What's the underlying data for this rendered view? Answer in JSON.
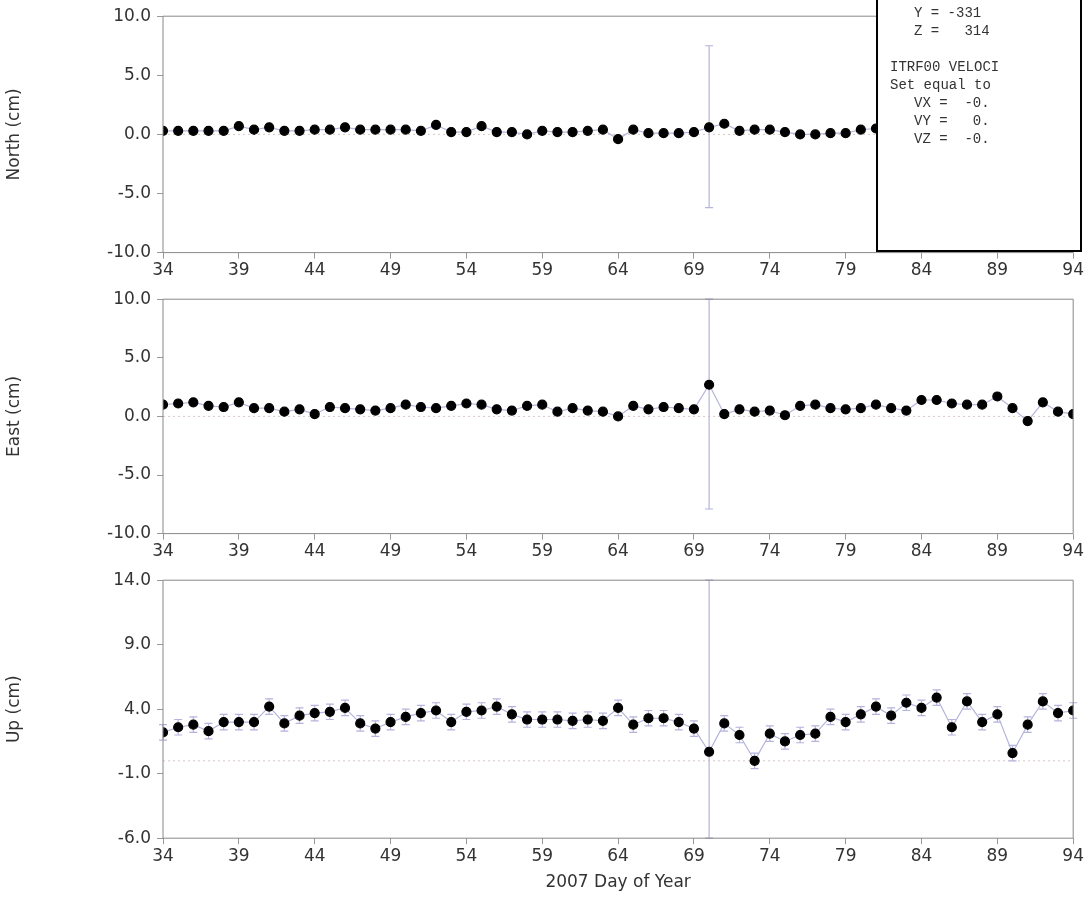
{
  "chart_data": [
    {
      "type": "line",
      "ylabel": "North (cm)",
      "marker": "circle",
      "xlim": [
        34,
        94
      ],
      "xticks": [
        34,
        39,
        44,
        49,
        54,
        59,
        64,
        69,
        74,
        79,
        84,
        89,
        94
      ],
      "ylim": [
        -10,
        10
      ],
      "yticks": [
        {
          "value": -10,
          "label": "-10.0"
        },
        {
          "value": -5,
          "label": "-5.0"
        },
        {
          "value": 0,
          "label": "0.0"
        },
        {
          "value": 5,
          "label": "5.0"
        },
        {
          "value": 10,
          "label": "10.0"
        }
      ],
      "ref_lines": [
        {
          "axis": "y",
          "value": 0,
          "line_style": "dotted",
          "color": "#d8c8c8"
        }
      ],
      "annotations": [
        "Y = -331",
        "Z =   314",
        "ITRF00 VELOCI",
        "Set equal to",
        "VX =  -0.",
        "VY =   0.",
        "VZ =  -0."
      ],
      "series": [
        {
          "color": "#000000",
          "x": [
            34,
            35,
            36,
            37,
            38,
            39,
            40,
            41,
            42,
            43,
            44,
            45,
            46,
            47,
            48,
            49,
            50,
            51,
            52,
            53,
            54,
            55,
            56,
            57,
            58,
            59,
            60,
            61,
            62,
            63,
            64,
            65,
            66,
            67,
            68,
            69,
            70,
            71,
            72,
            73,
            74,
            75,
            76,
            77,
            78,
            79,
            80,
            81
          ],
          "values": [
            0.3,
            0.3,
            0.3,
            0.3,
            0.3,
            0.7,
            0.4,
            0.6,
            0.3,
            0.3,
            0.4,
            0.4,
            0.6,
            0.4,
            0.4,
            0.4,
            0.4,
            0.3,
            0.8,
            0.2,
            0.2,
            0.7,
            0.2,
            0.2,
            0.0,
            0.3,
            0.2,
            0.2,
            0.3,
            0.4,
            -0.4,
            0.4,
            0.1,
            0.1,
            0.1,
            0.2,
            0.6,
            0.9,
            0.3,
            0.4,
            0.4,
            0.2,
            0.0,
            0.0,
            0.1,
            0.1,
            0.4,
            0.5
          ],
          "errors": [
            null,
            null,
            null,
            null,
            null,
            null,
            null,
            null,
            null,
            null,
            null,
            null,
            null,
            null,
            null,
            null,
            null,
            null,
            null,
            null,
            null,
            null,
            null,
            null,
            null,
            null,
            null,
            null,
            null,
            null,
            null,
            null,
            null,
            null,
            null,
            null,
            [
              -6.2,
              7.5
            ],
            null,
            null,
            null,
            null,
            null,
            null,
            null,
            null,
            null,
            null,
            null
          ]
        }
      ]
    },
    {
      "type": "line",
      "ylabel": "East (cm)",
      "marker": "circle",
      "xlim": [
        34,
        94
      ],
      "xticks": [
        34,
        39,
        44,
        49,
        54,
        59,
        64,
        69,
        74,
        79,
        84,
        89,
        94
      ],
      "ylim": [
        -10,
        10
      ],
      "yticks": [
        {
          "value": -10,
          "label": "-10.0"
        },
        {
          "value": -5,
          "label": "-5.0"
        },
        {
          "value": 0,
          "label": "0.0"
        },
        {
          "value": 5,
          "label": "5.0"
        },
        {
          "value": 10,
          "label": "10.0"
        }
      ],
      "ref_lines": [
        {
          "axis": "y",
          "value": 0,
          "line_style": "dotted",
          "color": "#d8c8c8"
        }
      ],
      "series": [
        {
          "color": "#000000",
          "x": [
            34,
            35,
            36,
            37,
            38,
            39,
            40,
            41,
            42,
            43,
            44,
            45,
            46,
            47,
            48,
            49,
            50,
            51,
            52,
            53,
            54,
            55,
            56,
            57,
            58,
            59,
            60,
            61,
            62,
            63,
            64,
            65,
            66,
            67,
            68,
            69,
            70,
            71,
            72,
            73,
            74,
            75,
            76,
            77,
            78,
            79,
            80,
            81,
            82,
            83,
            84,
            85,
            86,
            87,
            88,
            89,
            90,
            91,
            92,
            93,
            94
          ],
          "values": [
            1.0,
            1.1,
            1.2,
            0.9,
            0.8,
            1.2,
            0.7,
            0.7,
            0.4,
            0.6,
            0.2,
            0.8,
            0.7,
            0.6,
            0.5,
            0.7,
            1.0,
            0.8,
            0.7,
            0.9,
            1.1,
            1.0,
            0.6,
            0.5,
            0.9,
            1.0,
            0.4,
            0.7,
            0.5,
            0.4,
            0.0,
            0.9,
            0.6,
            0.8,
            0.7,
            0.6,
            2.7,
            0.2,
            0.6,
            0.4,
            0.5,
            0.1,
            0.9,
            1.0,
            0.7,
            0.6,
            0.7,
            1.0,
            0.7,
            0.5,
            1.4,
            1.4,
            1.1,
            1.0,
            1.0,
            1.7,
            0.7,
            -0.4,
            1.2,
            0.4,
            0.2
          ],
          "errors": [
            null,
            null,
            null,
            null,
            null,
            null,
            null,
            null,
            null,
            null,
            null,
            null,
            null,
            null,
            null,
            null,
            null,
            null,
            null,
            null,
            null,
            null,
            null,
            null,
            null,
            null,
            null,
            null,
            null,
            null,
            null,
            null,
            null,
            null,
            null,
            null,
            [
              -7.9,
              10.0
            ],
            null,
            null,
            null,
            null,
            null,
            null,
            null,
            null,
            null,
            null,
            null,
            null,
            null,
            null,
            null,
            null,
            null,
            null,
            null,
            null,
            null,
            null,
            null,
            null
          ]
        }
      ]
    },
    {
      "type": "line",
      "ylabel": "Up (cm)",
      "xlabel": "2007 Day of Year",
      "marker": "circle",
      "xlim": [
        34,
        94
      ],
      "xticks": [
        34,
        39,
        44,
        49,
        54,
        59,
        64,
        69,
        74,
        79,
        84,
        89,
        94
      ],
      "ylim": [
        -6,
        14
      ],
      "yticks": [
        {
          "value": -6,
          "label": "-6.0"
        },
        {
          "value": -1,
          "label": "-1.0"
        },
        {
          "value": 4,
          "label": "4.0"
        },
        {
          "value": 9,
          "label": "9.0"
        },
        {
          "value": 14,
          "label": "14.0"
        }
      ],
      "ref_lines": [
        {
          "axis": "y",
          "value": 0,
          "line_style": "dotted",
          "color": "#d8c8c8"
        }
      ],
      "series": [
        {
          "color": "#000000",
          "x": [
            34,
            35,
            36,
            37,
            38,
            39,
            40,
            41,
            42,
            43,
            44,
            45,
            46,
            47,
            48,
            49,
            50,
            51,
            52,
            53,
            54,
            55,
            56,
            57,
            58,
            59,
            60,
            61,
            62,
            63,
            64,
            65,
            66,
            67,
            68,
            69,
            70,
            71,
            72,
            73,
            74,
            75,
            76,
            77,
            78,
            79,
            80,
            81,
            82,
            83,
            84,
            85,
            86,
            87,
            88,
            89,
            90,
            91,
            92,
            93,
            94
          ],
          "values": [
            2.2,
            2.6,
            2.8,
            2.3,
            3.0,
            3.0,
            3.0,
            4.2,
            2.9,
            3.5,
            3.7,
            3.8,
            4.1,
            2.9,
            2.5,
            3.0,
            3.4,
            3.7,
            3.9,
            3.0,
            3.8,
            3.9,
            4.2,
            3.6,
            3.2,
            3.2,
            3.2,
            3.1,
            3.2,
            3.1,
            4.1,
            2.8,
            3.3,
            3.3,
            3.0,
            2.5,
            0.7,
            2.9,
            2.0,
            0.0,
            2.1,
            1.5,
            2.0,
            2.1,
            3.4,
            3.0,
            3.6,
            4.2,
            3.5,
            4.5,
            4.1,
            4.9,
            2.6,
            4.6,
            3.0,
            3.6,
            0.6,
            2.8,
            4.6,
            3.7,
            3.9
          ],
          "errors": [
            0.6,
            0.6,
            0.6,
            0.6,
            0.6,
            0.6,
            0.6,
            0.6,
            0.6,
            0.6,
            0.6,
            0.6,
            0.6,
            0.6,
            0.6,
            0.6,
            0.6,
            0.6,
            0.6,
            0.6,
            0.6,
            0.6,
            0.6,
            0.6,
            0.6,
            0.6,
            0.6,
            0.6,
            0.6,
            0.6,
            0.6,
            0.6,
            0.6,
            0.6,
            0.6,
            0.6,
            [
              -6.0,
              14.0
            ],
            0.6,
            0.6,
            0.6,
            0.6,
            0.6,
            0.6,
            0.6,
            0.6,
            0.6,
            0.6,
            0.6,
            0.6,
            0.6,
            0.6,
            0.6,
            0.6,
            0.6,
            0.6,
            0.6,
            0.6,
            0.6,
            0.6,
            0.6,
            0.6
          ]
        }
      ]
    }
  ]
}
